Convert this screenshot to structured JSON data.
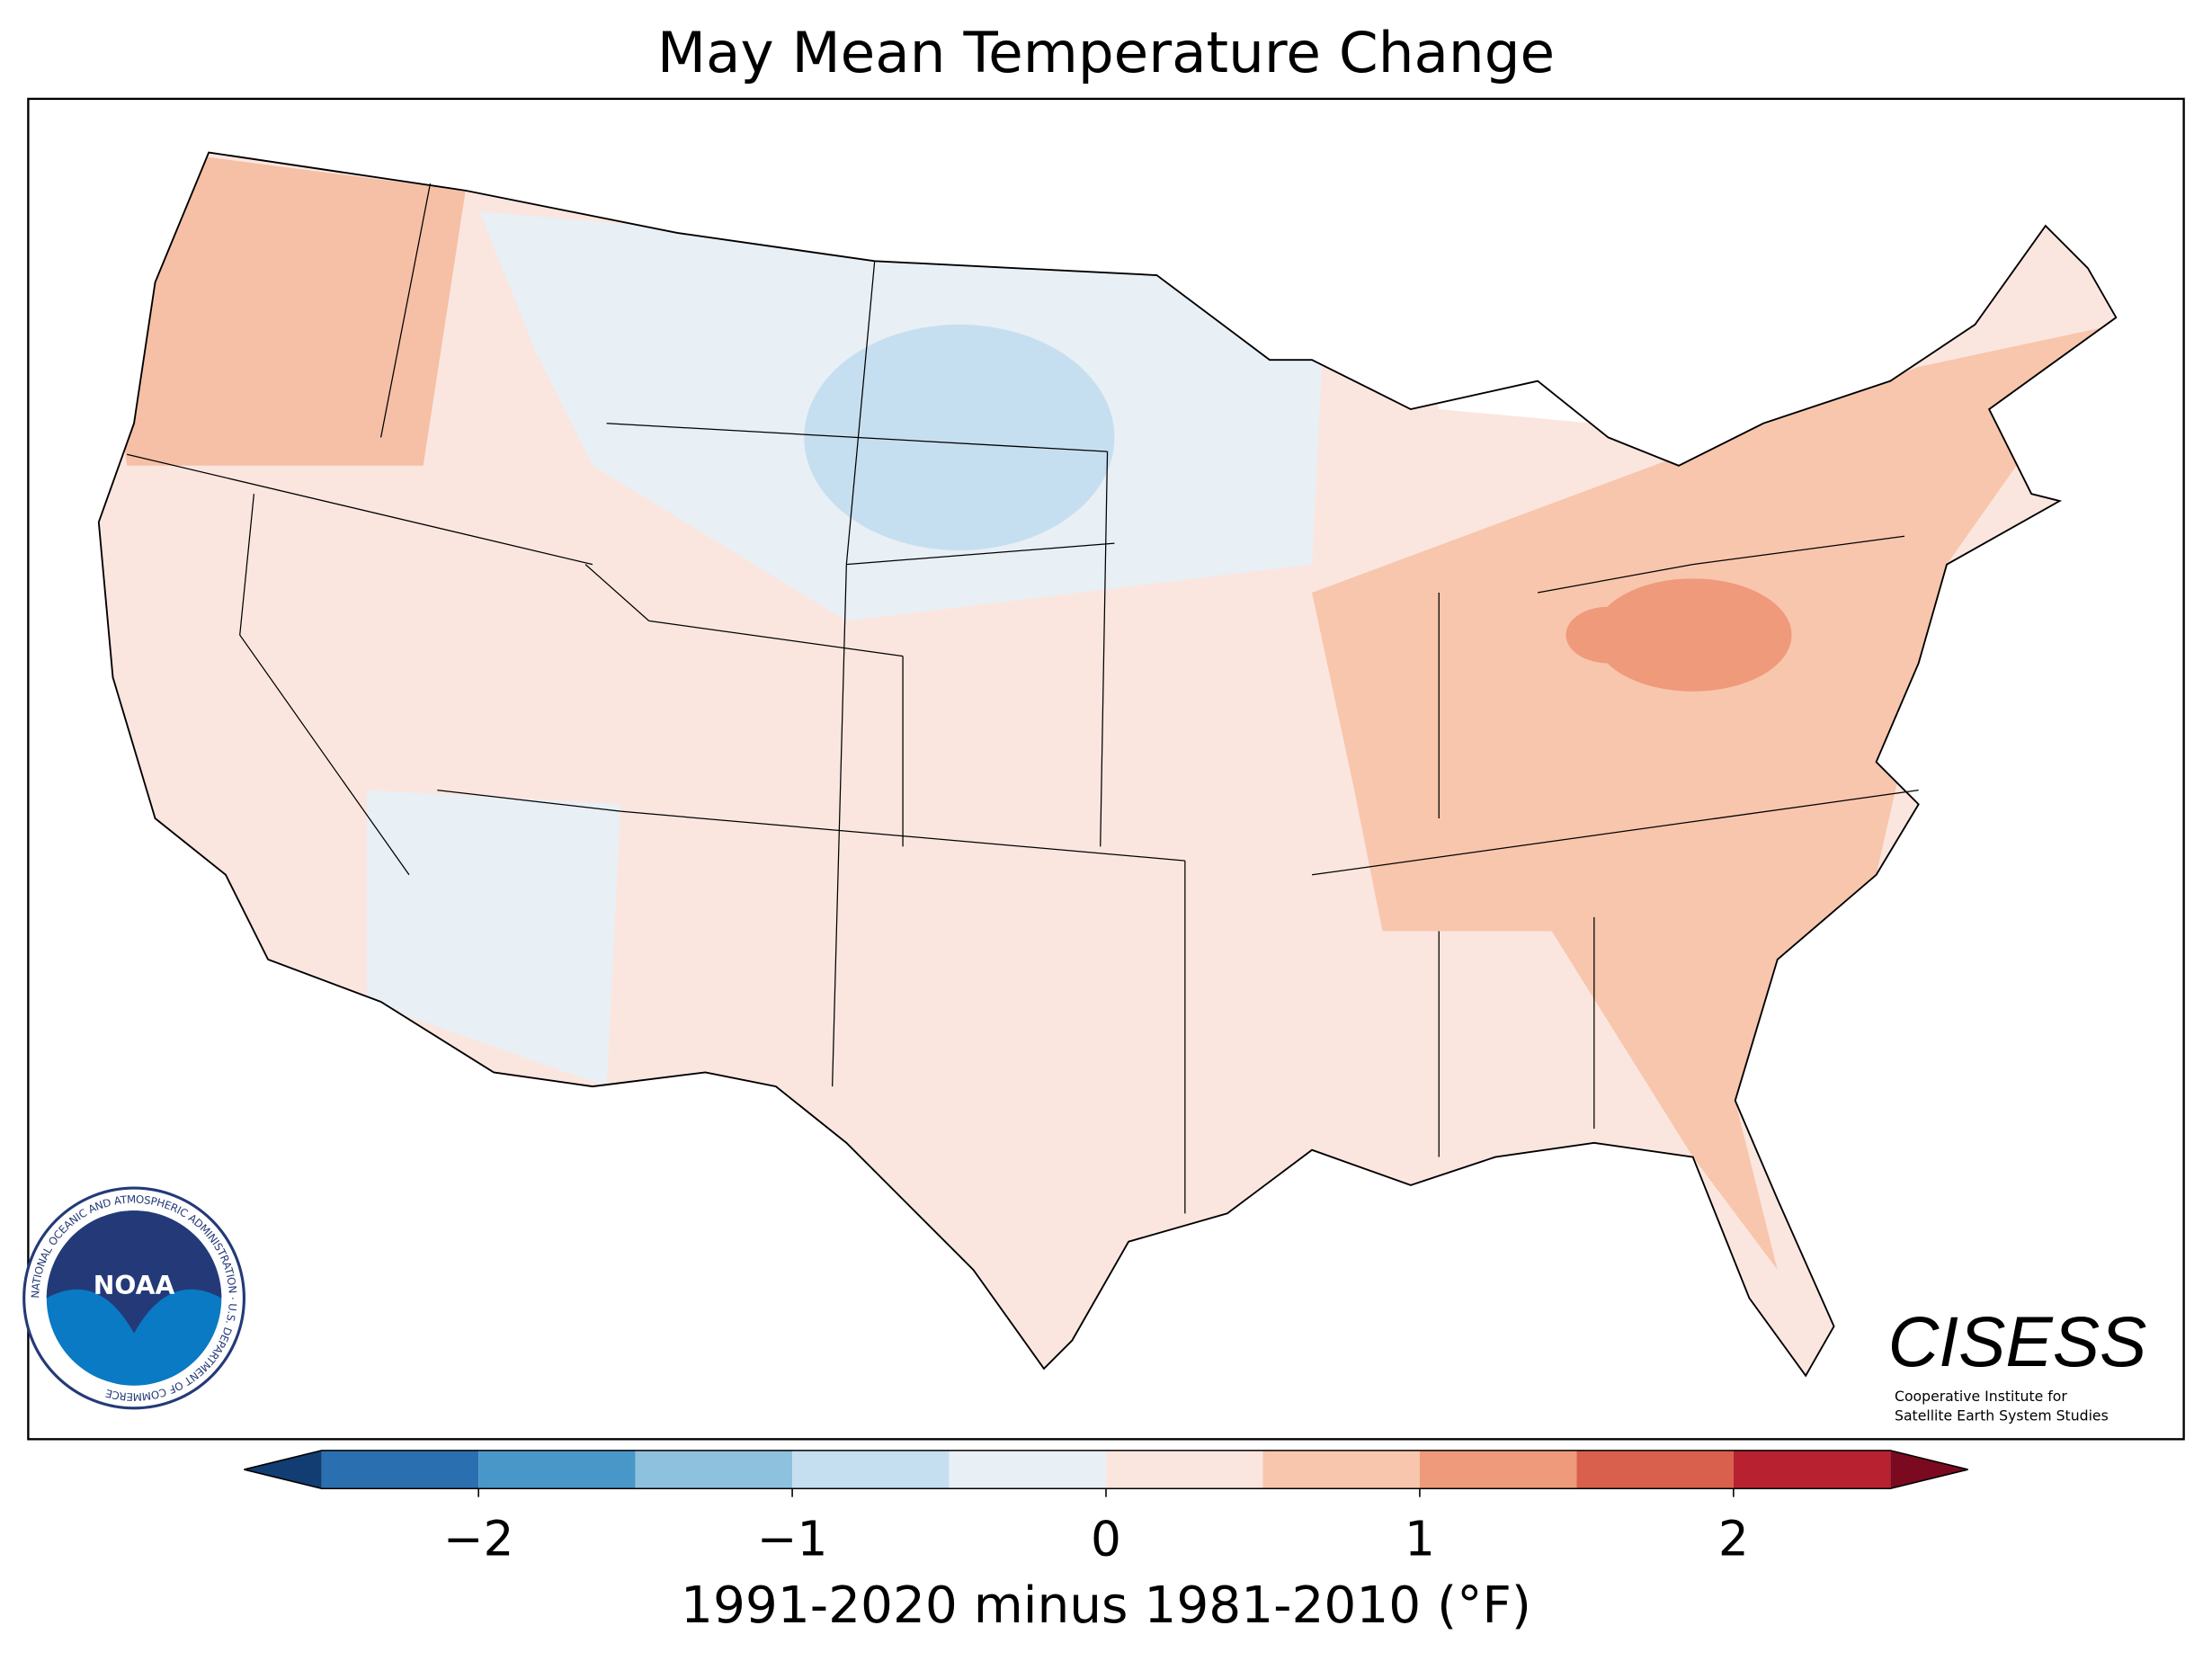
{
  "title": "May Mean Temperature Change",
  "colorbar": {
    "bounds": [
      -2.5,
      -2,
      -1.5,
      -1,
      -0.5,
      0,
      0.5,
      1,
      1.5,
      2,
      2.5
    ],
    "colors": [
      "#2a6fb0",
      "#4997c9",
      "#8ec1de",
      "#c6dff0",
      "#e8eff5",
      "#fbe6df",
      "#f8c6ad",
      "#ef9a7a",
      "#d8604c",
      "#b72130"
    ],
    "extend_colors": [
      "#123d72",
      "#7b0a20"
    ],
    "xlim": [
      -2.5,
      2.5
    ],
    "ticks": [
      {
        "value": -2,
        "label": "−2"
      },
      {
        "value": -1,
        "label": "−1"
      },
      0,
      1,
      2
    ],
    "label": "1991-2020 minus 1981-2010 (°F)"
  },
  "logos": {
    "noaa": "NOAA",
    "noaa_ring": "NATIONAL OCEANIC AND ATMOSPHERIC ADMINISTRATION · U.S. DEPARTMENT OF COMMERCE",
    "cisess": "CISESS",
    "cisess_line1": "Cooperative Institute for",
    "cisess_line2": "Satellite Earth System Studies"
  }
}
